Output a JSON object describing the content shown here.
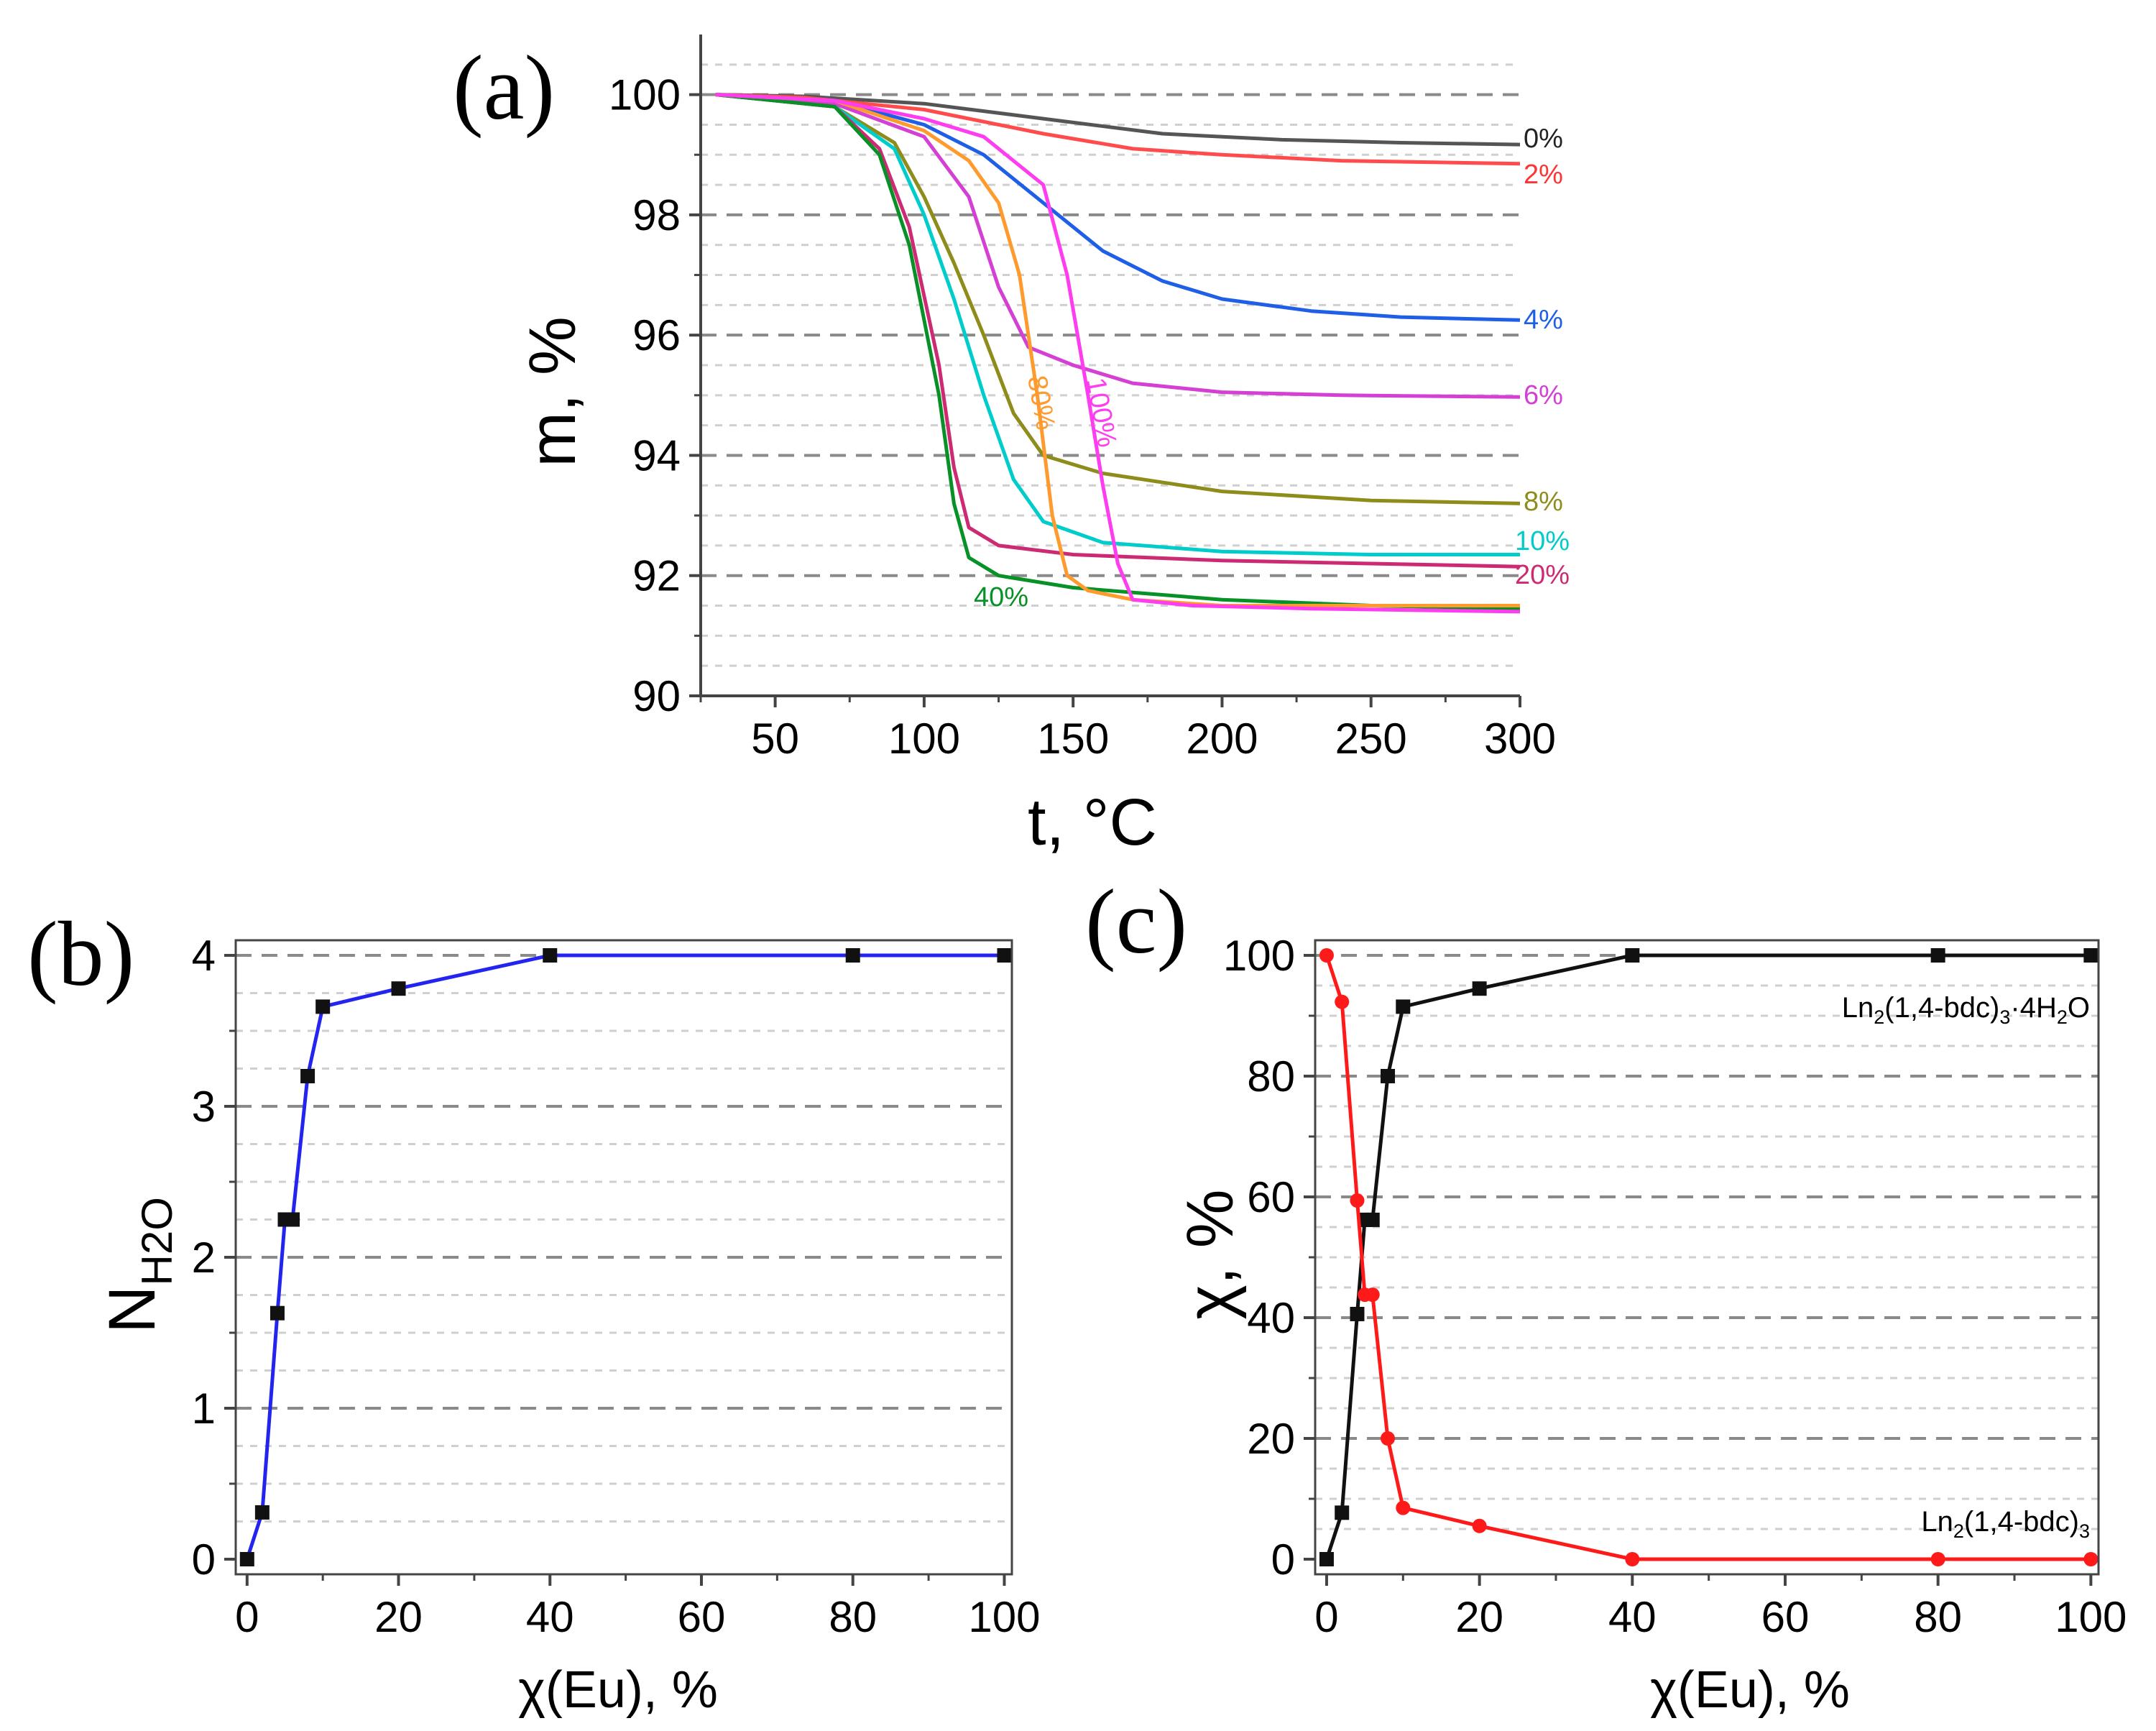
{
  "chart_data": [
    {
      "id": "a",
      "panel_label": "(a)",
      "type": "line",
      "xlabel": "t, °C",
      "ylabel": "m, %",
      "xlim": [
        25,
        300
      ],
      "ylim": [
        90,
        101
      ],
      "xticks": [
        50,
        100,
        150,
        200,
        250,
        300
      ],
      "yticks": [
        90,
        92,
        94,
        96,
        98,
        100
      ],
      "series": [
        {
          "name": "0%",
          "color": "#555555",
          "x": [
            30,
            60,
            100,
            140,
            180,
            220,
            260,
            300
          ],
          "y": [
            100,
            99.97,
            99.85,
            99.6,
            99.35,
            99.25,
            99.2,
            99.17
          ]
        },
        {
          "name": "2%",
          "color": "#ff4b4b",
          "x": [
            30,
            60,
            100,
            140,
            170,
            200,
            240,
            300
          ],
          "y": [
            100,
            99.95,
            99.75,
            99.35,
            99.1,
            99.0,
            98.9,
            98.85
          ]
        },
        {
          "name": "4%",
          "color": "#1f5fe8",
          "x": [
            30,
            70,
            100,
            120,
            140,
            160,
            180,
            200,
            230,
            260,
            300
          ],
          "y": [
            100,
            99.9,
            99.5,
            99.0,
            98.2,
            97.4,
            96.9,
            96.6,
            96.4,
            96.3,
            96.25
          ]
        },
        {
          "name": "6%",
          "color": "#d43fd4",
          "x": [
            30,
            70,
            100,
            115,
            125,
            135,
            150,
            170,
            200,
            240,
            300
          ],
          "y": [
            100,
            99.85,
            99.3,
            98.3,
            96.8,
            95.8,
            95.5,
            95.2,
            95.05,
            95.0,
            94.97
          ]
        },
        {
          "name": "8%",
          "color": "#8e8c1b",
          "x": [
            30,
            70,
            90,
            100,
            110,
            120,
            130,
            140,
            160,
            200,
            250,
            300
          ],
          "y": [
            100,
            99.8,
            99.2,
            98.3,
            97.2,
            96.0,
            94.7,
            94.0,
            93.7,
            93.4,
            93.25,
            93.2
          ]
        },
        {
          "name": "10%",
          "color": "#00cccc",
          "x": [
            30,
            70,
            90,
            100,
            110,
            120,
            130,
            140,
            160,
            200,
            250,
            300
          ],
          "y": [
            100,
            99.8,
            99.1,
            98.0,
            96.6,
            95.0,
            93.6,
            92.9,
            92.55,
            92.4,
            92.35,
            92.35
          ]
        },
        {
          "name": "20%",
          "color": "#cc2a72",
          "x": [
            30,
            70,
            85,
            95,
            105,
            110,
            115,
            125,
            150,
            200,
            250,
            300
          ],
          "y": [
            100,
            99.8,
            99.1,
            97.8,
            95.5,
            93.8,
            92.8,
            92.5,
            92.35,
            92.25,
            92.2,
            92.15
          ]
        },
        {
          "name": "40%",
          "color": "#079126",
          "x": [
            30,
            70,
            85,
            95,
            105,
            110,
            115,
            125,
            150,
            200,
            250,
            300
          ],
          "y": [
            100,
            99.8,
            99.0,
            97.5,
            95.0,
            93.2,
            92.3,
            92.0,
            91.8,
            91.6,
            91.5,
            91.45
          ]
        },
        {
          "name": "80%",
          "color": "#ff9a2e",
          "x": [
            30,
            70,
            100,
            115,
            125,
            132,
            138,
            143,
            148,
            155,
            170,
            200,
            250,
            300
          ],
          "y": [
            100,
            99.9,
            99.4,
            98.9,
            98.2,
            97.0,
            95.0,
            93.0,
            92.0,
            91.75,
            91.6,
            91.5,
            91.5,
            91.5
          ]
        },
        {
          "name": "100%",
          "color": "#ff3df0",
          "x": [
            30,
            70,
            100,
            120,
            140,
            148,
            155,
            160,
            165,
            170,
            190,
            230,
            300
          ],
          "y": [
            100,
            99.9,
            99.6,
            99.3,
            98.5,
            97.0,
            95.0,
            93.5,
            92.2,
            91.6,
            91.5,
            91.45,
            91.4
          ]
        }
      ],
      "annotations": [
        {
          "text": "0%",
          "color": "#222222"
        },
        {
          "text": "2%",
          "color": "#ff3333"
        },
        {
          "text": "4%",
          "color": "#1f5fe8"
        },
        {
          "text": "6%",
          "color": "#d43fd4"
        },
        {
          "text": "8%",
          "color": "#8e8c1b"
        },
        {
          "text": "10%",
          "color": "#00cccc"
        },
        {
          "text": "20%",
          "color": "#cc2a72"
        },
        {
          "text": "40%",
          "color": "#079126"
        },
        {
          "text": "80%",
          "color": "#ff9a2e"
        },
        {
          "text": "100%",
          "color": "#ff3df0"
        }
      ]
    },
    {
      "id": "b",
      "panel_label": "(b)",
      "type": "line",
      "xlabel": "χ(Eu), %",
      "ylabel": "N",
      "ylabel_sub": "H2O",
      "xlim": [
        -1.5,
        101
      ],
      "ylim": [
        -0.1,
        4.1
      ],
      "xticks": [
        0,
        20,
        40,
        60,
        80,
        100
      ],
      "yticks": [
        0,
        1,
        2,
        3,
        4
      ],
      "series": [
        {
          "name": "N_H2O",
          "color": "#2424f0",
          "x": [
            0,
            2,
            4,
            5,
            6,
            8,
            10,
            20,
            40,
            80,
            100
          ],
          "y": [
            0,
            0.31,
            1.63,
            2.25,
            2.25,
            3.2,
            3.66,
            3.78,
            4,
            4,
            4
          ]
        }
      ]
    },
    {
      "id": "c",
      "panel_label": "(c)",
      "type": "line",
      "xlabel": "χ(Eu), %",
      "ylabel": "χ, %",
      "xlim": [
        -1.5,
        101
      ],
      "ylim": [
        -2.5,
        102.5
      ],
      "xticks": [
        0,
        20,
        40,
        60,
        80,
        100
      ],
      "yticks": [
        0,
        20,
        40,
        60,
        80,
        100
      ],
      "series": [
        {
          "name": "Ln2(1,4-bdc)3·4H2O",
          "color": "#111111",
          "x": [
            0,
            2,
            4,
            5,
            6,
            8,
            10,
            20,
            40,
            80,
            100
          ],
          "y": [
            0,
            7.7,
            40.6,
            56.2,
            56.2,
            80,
            91.5,
            94.5,
            100,
            100,
            100
          ]
        },
        {
          "name": "Ln2(1,4-bdc)3",
          "color": "#ff1a1a",
          "x": [
            0,
            2,
            4,
            5,
            6,
            8,
            10,
            20,
            40,
            80,
            100
          ],
          "y": [
            100,
            92.3,
            59.4,
            43.8,
            43.8,
            20,
            8.5,
            5.5,
            0,
            0,
            0
          ]
        }
      ],
      "legend": [
        {
          "prefix": "Ln",
          "sub1": "2",
          "mid": "(1,4-bdc)",
          "sub2": "3",
          "suffix": "·4H",
          "sub3": "2",
          "tail": "O",
          "color": "#222222"
        },
        {
          "prefix": "Ln",
          "sub1": "2",
          "mid": "(1,4-bdc)",
          "sub2": "3",
          "suffix": "",
          "sub3": "",
          "tail": "",
          "color": "#ff1a1a"
        }
      ]
    }
  ]
}
